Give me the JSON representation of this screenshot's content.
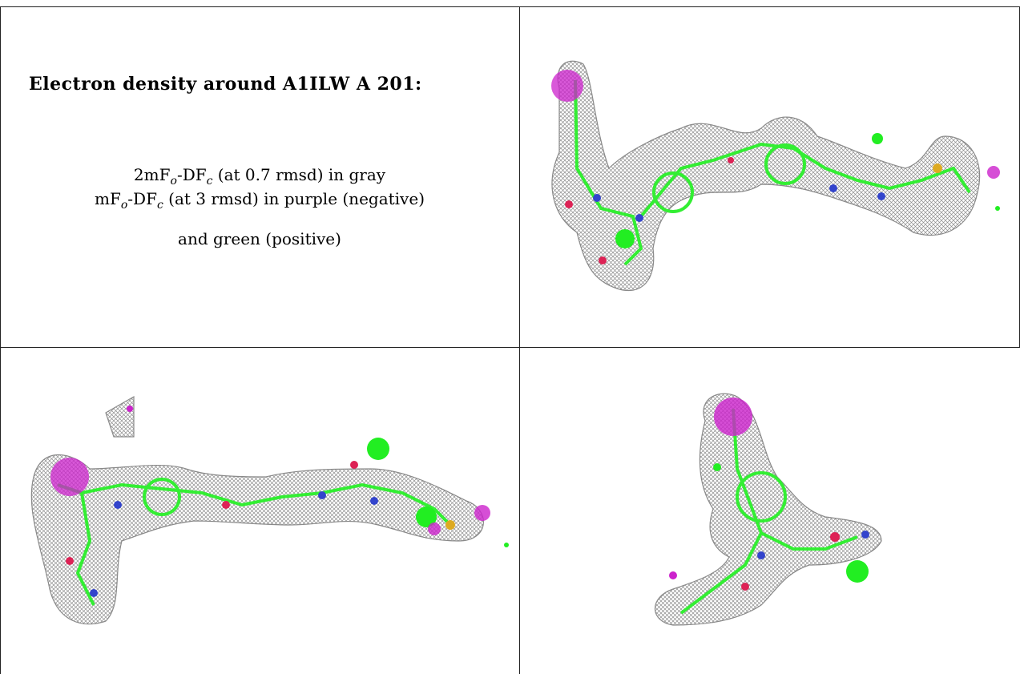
{
  "caption": {
    "title": "Electron density around A1ILW A 201:",
    "line1": {
      "prefix": "2mF",
      "sub1": "o",
      "mid": "-DF",
      "sub2": "c",
      "suffix": " (at 0.7 rmsd) in gray"
    },
    "line2": {
      "prefix": "mF",
      "sub1": "o",
      "mid": "-DF",
      "sub2": "c",
      "suffix": " (at 3 rmsd) in purple (negative)"
    },
    "line3": "and green (positive)"
  },
  "colors": {
    "mesh": "#9a9a9a",
    "carbon": "#33ee33",
    "negative": "#cc22cc",
    "positive": "#22ee22",
    "oxygen": "#dd2255",
    "nitrogen": "#3344cc",
    "sulfur": "#ddaa22",
    "fluorine": "#88ccdd"
  },
  "views": [
    {
      "label": "top-right density view"
    },
    {
      "label": "bottom-left density view"
    },
    {
      "label": "bottom-right density view"
    }
  ]
}
